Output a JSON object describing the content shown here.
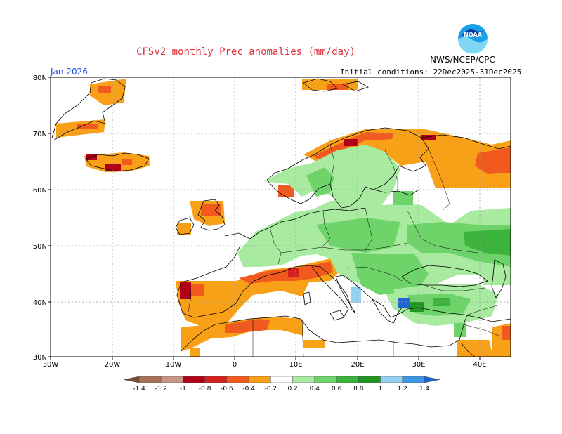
{
  "title": "CFSv2 monthly Prec anomalies (mm/day)",
  "agency": "NWS/NCEP/CPC",
  "logo_text": "NOAA",
  "month": "Jan 2026",
  "initial_conditions": "Initial conditions: 22Dec2025-31Dec2025",
  "lon_labels": [
    "30W",
    "20W",
    "10W",
    "0",
    "10E",
    "20E",
    "30E",
    "40E"
  ],
  "lat_labels": [
    "80N",
    "70N",
    "60N",
    "50N",
    "40N",
    "30N"
  ],
  "colorbar": {
    "labels": [
      "-1.4",
      "-1.2",
      "-1",
      "-0.8",
      "-0.6",
      "-0.4",
      "-0.2",
      "0.2",
      "0.4",
      "0.6",
      "0.8",
      "1",
      "1.2",
      "1.4"
    ],
    "colors": [
      "#7a4a35",
      "#a8715a",
      "#c9968a",
      "#b00018",
      "#d6201c",
      "#f05a1e",
      "#f8a018",
      "#ffffff",
      "#a8eaa0",
      "#6ed46a",
      "#3cb43c",
      "#1e9620",
      "#96d2f0",
      "#3c96e6",
      "#1e64d2"
    ]
  },
  "colors": {
    "title": "#e0303a",
    "month": "#1a4fd8",
    "grid": "#999999",
    "coast": "#000000"
  }
}
